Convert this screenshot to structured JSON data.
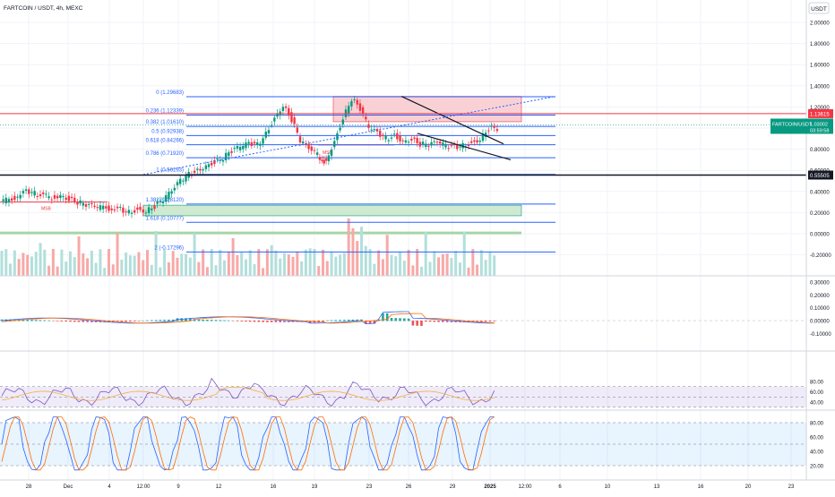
{
  "header": {
    "symbol_title": "FARTCOIN / USDT, 4h, MEXC",
    "currency_badge": "USDT"
  },
  "x_axis": {
    "tick_labels": [
      "28",
      "Dec",
      "4",
      "12:00",
      "9",
      "12",
      "16",
      "19",
      "23",
      "26",
      "29",
      "2025",
      "12:00",
      "6",
      "10",
      "13",
      "16",
      "20",
      "23"
    ]
  },
  "chart_data": [
    {
      "type": "line",
      "title": "FARTCOIN / USDT, 4h, MEXC",
      "y_axis_labels": [
        "2.00000",
        "1.80000",
        "1.60000",
        "1.40000",
        "1.20000",
        "1.00000",
        "0.80000",
        "0.60000",
        "0.40000",
        "0.20000",
        "0.00000",
        "-0.20000"
      ],
      "ylim": [
        -0.25,
        2.05
      ],
      "price_path": {
        "x": [
          0,
          4,
          6,
          8,
          12,
          14,
          16,
          18,
          20,
          22,
          26,
          28,
          30,
          32,
          34,
          36,
          38,
          40,
          42,
          44,
          46,
          48,
          50,
          52,
          54,
          56,
          58,
          60,
          62,
          64,
          66,
          68,
          70,
          72,
          74,
          75,
          76,
          78,
          80,
          82,
          84,
          86,
          88,
          90,
          92,
          94,
          96,
          98,
          100,
          102,
          104,
          106,
          108,
          110,
          112,
          114,
          116
        ],
        "y": [
          0.3,
          0.35,
          0.4,
          0.38,
          0.34,
          0.37,
          0.33,
          0.3,
          0.27,
          0.25,
          0.24,
          0.23,
          0.21,
          0.23,
          0.22,
          0.26,
          0.32,
          0.4,
          0.5,
          0.56,
          0.6,
          0.65,
          0.68,
          0.72,
          0.78,
          0.82,
          0.85,
          0.84,
          0.95,
          1.1,
          1.22,
          1.08,
          0.88,
          0.8,
          0.75,
          0.68,
          0.7,
          0.88,
          1.1,
          1.28,
          1.18,
          1.0,
          0.95,
          0.9,
          0.93,
          0.88,
          0.9,
          0.85,
          0.84,
          0.86,
          0.83,
          0.82,
          0.84,
          0.86,
          0.9,
          1.0,
          0.99
        ]
      },
      "fibonacci": [
        {
          "ratio": "0",
          "label": "0 (1.29683)",
          "value": 1.29683
        },
        {
          "ratio": "0.236",
          "label": "0.236 (1.12339)",
          "value": 1.12339
        },
        {
          "ratio": "0.382",
          "label": "0.382 (1.01610)",
          "value": 1.0161
        },
        {
          "ratio": "0.5",
          "label": "0.5 (0.92938)",
          "value": 0.92938
        },
        {
          "ratio": "0.618",
          "label": "0.618 (0.84266)",
          "value": 0.84266
        },
        {
          "ratio": "0.786",
          "label": "0.786 (0.71920)",
          "value": 0.7192
        },
        {
          "ratio": "1",
          "label": "1 (0.56193)",
          "value": 0.56193
        },
        {
          "ratio": "1.382",
          "label": "1.382 (0.28120)",
          "value": 0.2812
        },
        {
          "ratio": "1.618",
          "label": "1.618 (0.10777)",
          "value": 0.10777
        },
        {
          "ratio": "2",
          "label": "2 (-0.17296)",
          "value": -0.17296
        }
      ],
      "price_labels": [
        {
          "text": "1.13615",
          "value": 1.13615,
          "color": "#f23645"
        },
        {
          "text": "FARTCOIN/USDT",
          "value": 1.03,
          "color": "#089981"
        },
        {
          "text": "1.03002",
          "value": 1.03002,
          "color": "#089981"
        },
        {
          "text": "03:59:58",
          "value": 1.0,
          "color": "#089981"
        },
        {
          "text": "0.55505",
          "value": 0.55505,
          "color": "#131722"
        }
      ],
      "annotations": [
        {
          "text": "MSB",
          "color": "#f23645"
        },
        {
          "text": "MSB",
          "color": "#f23645"
        }
      ]
    },
    {
      "type": "line",
      "title": "",
      "y_axis_labels": [
        "0.30000",
        "0.20000",
        "0.10000",
        "0.00000",
        "-0.10000"
      ],
      "ylim": [
        -0.13,
        0.33
      ]
    },
    {
      "type": "line",
      "title": "",
      "y_axis_labels": [
        "80.00",
        "60.00",
        "40.00"
      ],
      "ylim": [
        35,
        90
      ]
    },
    {
      "type": "line",
      "title": "",
      "y_axis_labels": [
        "80.00",
        "60.00",
        "40.00",
        "20.00"
      ],
      "ylim": [
        12,
        90
      ]
    }
  ]
}
